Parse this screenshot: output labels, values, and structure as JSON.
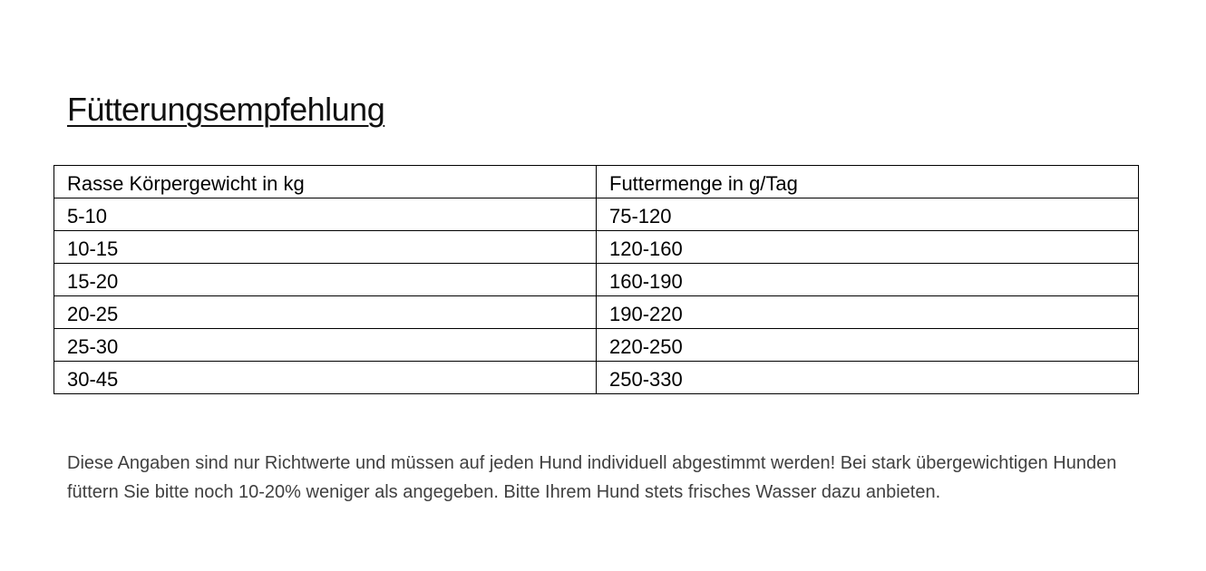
{
  "title": "Fütterungsempfehlung",
  "table": {
    "headers": [
      "Rasse Körpergewicht in kg",
      "Futtermenge in g/Tag"
    ],
    "rows": [
      [
        "5-10",
        "75-120"
      ],
      [
        "10-15",
        "120-160"
      ],
      [
        "15-20",
        "160-190"
      ],
      [
        "20-25",
        "190-220"
      ],
      [
        "25-30",
        "220-250"
      ],
      [
        "30-45",
        "250-330"
      ]
    ]
  },
  "note": "Diese Angaben sind nur Richtwerte und müssen auf jeden Hund individuell abgestimmt werden! Bei stark übergewichtigen Hunden füttern Sie bitte noch 10-20% weniger als angegeben. Bitte Ihrem Hund stets frisches Wasser dazu anbieten."
}
